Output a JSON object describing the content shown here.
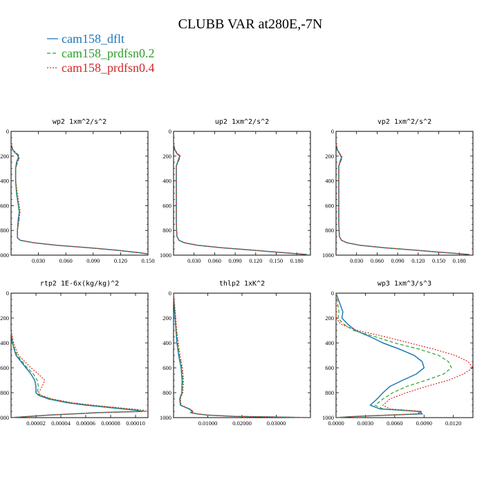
{
  "title": "CLUBB VAR at280E,-7N",
  "legend": [
    {
      "label": "cam158_dflt",
      "color": "#1f77b4",
      "dash": "solid"
    },
    {
      "label": "cam158_prdfsn0.2",
      "color": "#2ca02c",
      "dash": "dashed"
    },
    {
      "label": "cam158_prdfsn0.4",
      "color": "#d62728",
      "dash": "dotted"
    }
  ],
  "chart_data": [
    {
      "type": "line",
      "title": "wp2  1xm^2/s^2",
      "xlim": [
        0,
        0.15
      ],
      "ylim": [
        1000,
        0
      ],
      "yticks": [
        0,
        200,
        400,
        600,
        800,
        1000
      ],
      "xticks": [
        0.03,
        0.06,
        0.09,
        0.12,
        0.15
      ],
      "xtick_labels": [
        "0.030",
        "0.060",
        "0.090",
        "0.120",
        "0.150"
      ],
      "y": [
        100,
        150,
        170,
        190,
        210,
        250,
        300,
        400,
        500,
        600,
        650,
        700,
        800,
        860,
        880,
        900,
        920,
        940,
        960,
        980,
        990
      ],
      "series": [
        {
          "name": "cam158_dflt",
          "x": [
            0.0,
            0.002,
            0.004,
            0.007,
            0.008,
            0.006,
            0.005,
            0.005,
            0.006,
            0.008,
            0.009,
            0.008,
            0.007,
            0.007,
            0.01,
            0.025,
            0.05,
            0.085,
            0.115,
            0.14,
            0.15
          ]
        },
        {
          "name": "cam158_prdfsn0.2",
          "x": [
            0.0,
            0.002,
            0.005,
            0.008,
            0.009,
            0.007,
            0.005,
            0.005,
            0.006,
            0.008,
            0.009,
            0.009,
            0.007,
            0.007,
            0.01,
            0.025,
            0.05,
            0.085,
            0.115,
            0.14,
            0.15
          ]
        },
        {
          "name": "cam158_prdfsn0.4",
          "x": [
            0.0,
            0.002,
            0.005,
            0.008,
            0.009,
            0.007,
            0.005,
            0.005,
            0.007,
            0.009,
            0.01,
            0.009,
            0.007,
            0.007,
            0.01,
            0.025,
            0.05,
            0.085,
            0.115,
            0.14,
            0.15
          ]
        }
      ]
    },
    {
      "type": "line",
      "title": "up2  1xm^2/s^2",
      "xlim": [
        0,
        0.2
      ],
      "ylim": [
        1000,
        0
      ],
      "yticks": [
        0,
        200,
        400,
        600,
        800,
        1000
      ],
      "xticks": [
        0.03,
        0.06,
        0.09,
        0.12,
        0.15,
        0.18
      ],
      "xtick_labels": [
        "0.030",
        "0.060",
        "0.090",
        "0.120",
        "0.150",
        "0.180"
      ],
      "y": [
        100,
        150,
        180,
        200,
        230,
        280,
        350,
        450,
        550,
        650,
        750,
        850,
        880,
        900,
        920,
        940,
        960,
        980,
        995
      ],
      "series": [
        {
          "name": "cam158_dflt",
          "x": [
            0.0,
            0.002,
            0.005,
            0.009,
            0.007,
            0.004,
            0.004,
            0.004,
            0.004,
            0.004,
            0.004,
            0.005,
            0.008,
            0.016,
            0.035,
            0.07,
            0.115,
            0.16,
            0.195
          ]
        },
        {
          "name": "cam158_prdfsn0.2",
          "x": [
            0.0,
            0.002,
            0.006,
            0.01,
            0.008,
            0.004,
            0.004,
            0.004,
            0.004,
            0.004,
            0.004,
            0.005,
            0.008,
            0.016,
            0.035,
            0.07,
            0.115,
            0.16,
            0.195
          ]
        },
        {
          "name": "cam158_prdfsn0.4",
          "x": [
            0.0,
            0.002,
            0.006,
            0.01,
            0.008,
            0.004,
            0.004,
            0.004,
            0.004,
            0.004,
            0.004,
            0.005,
            0.008,
            0.016,
            0.035,
            0.07,
            0.115,
            0.16,
            0.195
          ]
        }
      ]
    },
    {
      "type": "line",
      "title": "vp2  1xm^2/s^2",
      "xlim": [
        0,
        0.2
      ],
      "ylim": [
        1000,
        0
      ],
      "yticks": [
        0,
        200,
        400,
        600,
        800,
        1000
      ],
      "xticks": [
        0.03,
        0.06,
        0.09,
        0.12,
        0.15,
        0.18
      ],
      "xtick_labels": [
        "0.030",
        "0.060",
        "0.090",
        "0.120",
        "0.150",
        "0.180"
      ],
      "y": [
        100,
        150,
        180,
        210,
        240,
        280,
        350,
        450,
        550,
        650,
        750,
        850,
        880,
        900,
        920,
        940,
        960,
        980,
        995
      ],
      "series": [
        {
          "name": "cam158_dflt",
          "x": [
            0.0,
            0.002,
            0.005,
            0.008,
            0.006,
            0.004,
            0.004,
            0.004,
            0.004,
            0.004,
            0.004,
            0.005,
            0.008,
            0.016,
            0.035,
            0.07,
            0.115,
            0.16,
            0.195
          ]
        },
        {
          "name": "cam158_prdfsn0.2",
          "x": [
            0.0,
            0.002,
            0.005,
            0.009,
            0.007,
            0.004,
            0.004,
            0.004,
            0.004,
            0.004,
            0.004,
            0.005,
            0.008,
            0.016,
            0.035,
            0.07,
            0.115,
            0.16,
            0.195
          ]
        },
        {
          "name": "cam158_prdfsn0.4",
          "x": [
            0.0,
            0.002,
            0.006,
            0.009,
            0.007,
            0.004,
            0.004,
            0.004,
            0.004,
            0.004,
            0.004,
            0.005,
            0.008,
            0.016,
            0.035,
            0.07,
            0.115,
            0.16,
            0.195
          ]
        }
      ]
    },
    {
      "type": "line",
      "title": "rtp2  1E-6x(kg/kg)^2",
      "xlim": [
        0,
        0.00011
      ],
      "ylim": [
        1000,
        0
      ],
      "yticks": [
        0,
        200,
        400,
        600,
        800,
        1000
      ],
      "xticks": [
        2e-05,
        4e-05,
        6e-05,
        8e-05,
        0.0001
      ],
      "xtick_labels": [
        "0.00002",
        "0.00004",
        "0.00006",
        "0.00008",
        "0.00010"
      ],
      "y": [
        300,
        400,
        500,
        550,
        600,
        650,
        700,
        750,
        800,
        820,
        850,
        880,
        900,
        920,
        940,
        950,
        960,
        980,
        1000
      ],
      "series": [
        {
          "name": "cam158_dflt",
          "x": [
            0.0,
            1e-06,
            4e-06,
            8e-06,
            1.2e-05,
            1.6e-05,
            1.9e-05,
            2e-05,
            2e-05,
            2.2e-05,
            3e-05,
            4.5e-05,
            6e-05,
            8e-05,
            0.0001,
            0.000105,
            7e-05,
            3e-05,
            0.0
          ]
        },
        {
          "name": "cam158_prdfsn0.2",
          "x": [
            0.0,
            1e-06,
            5e-06,
            9e-06,
            1.3e-05,
            1.8e-05,
            2.1e-05,
            2.2e-05,
            2.1e-05,
            2.3e-05,
            3.2e-05,
            4.7e-05,
            6.3e-05,
            8.3e-05,
            0.000103,
            0.000107,
            7e-05,
            3e-05,
            0.0
          ]
        },
        {
          "name": "cam158_prdfsn0.4",
          "x": [
            0.0,
            2e-06,
            6e-06,
            1.1e-05,
            1.6e-05,
            2.2e-05,
            2.7e-05,
            2.5e-05,
            2.2e-05,
            2.4e-05,
            3.3e-05,
            4.9e-05,
            6.6e-05,
            8.6e-05,
            0.000106,
            0.00011,
            7.2e-05,
            3e-05,
            0.0
          ]
        }
      ]
    },
    {
      "type": "line",
      "title": "thlp2  1xK^2",
      "xlim": [
        0,
        0.04
      ],
      "ylim": [
        1000,
        0
      ],
      "yticks": [
        0,
        200,
        400,
        600,
        800,
        1000
      ],
      "xticks": [
        0.01,
        0.02,
        0.03
      ],
      "xtick_labels": [
        "0.01000",
        "0.02000",
        "0.03000"
      ],
      "y": [
        0,
        150,
        300,
        400,
        500,
        600,
        700,
        800,
        850,
        900,
        930,
        950,
        960,
        970,
        980,
        990,
        995,
        1000
      ],
      "series": [
        {
          "name": "cam158_dflt",
          "x": [
            0.0,
            0.0003,
            0.0007,
            0.001,
            0.0015,
            0.0022,
            0.0025,
            0.0024,
            0.0018,
            0.002,
            0.0045,
            0.0055,
            0.005,
            0.007,
            0.01,
            0.018,
            0.03,
            0.04
          ]
        },
        {
          "name": "cam158_prdfsn0.2",
          "x": [
            0.0,
            0.0004,
            0.0008,
            0.0012,
            0.0017,
            0.0024,
            0.0027,
            0.0025,
            0.0019,
            0.0021,
            0.0046,
            0.0056,
            0.0051,
            0.007,
            0.01,
            0.018,
            0.03,
            0.04
          ]
        },
        {
          "name": "cam158_prdfsn0.4",
          "x": [
            0.0,
            0.0005,
            0.0009,
            0.0014,
            0.0019,
            0.0026,
            0.0029,
            0.0027,
            0.002,
            0.0022,
            0.0048,
            0.0058,
            0.0052,
            0.007,
            0.01,
            0.018,
            0.03,
            0.04
          ]
        }
      ]
    },
    {
      "type": "line",
      "title": "wp3  1xm^3/s^3",
      "xlim": [
        0,
        0.014
      ],
      "ylim": [
        1000,
        0
      ],
      "yticks": [
        0,
        200,
        400,
        600,
        800,
        1000
      ],
      "xticks": [
        0,
        0.003,
        0.006,
        0.009,
        0.012
      ],
      "xtick_labels": [
        "0.0000",
        "0.0030",
        "0.0060",
        "0.0090",
        "0.0120"
      ],
      "y": [
        0,
        150,
        200,
        250,
        300,
        350,
        400,
        450,
        500,
        550,
        600,
        650,
        700,
        750,
        800,
        850,
        900,
        930,
        950,
        970,
        990,
        1000
      ],
      "series": [
        {
          "name": "cam158_dflt",
          "x": [
            0.0,
            0.0007,
            0.0006,
            0.0012,
            0.002,
            0.0035,
            0.0048,
            0.0065,
            0.008,
            0.0088,
            0.009,
            0.0082,
            0.0068,
            0.0055,
            0.0048,
            0.0042,
            0.0035,
            0.0045,
            0.0085,
            0.0088,
            0.002,
            0.0
          ]
        },
        {
          "name": "cam158_prdfsn0.2",
          "x": [
            0.0,
            0.0003,
            0.0002,
            0.0008,
            0.0018,
            0.004,
            0.006,
            0.0085,
            0.0105,
            0.0115,
            0.0118,
            0.011,
            0.0092,
            0.0072,
            0.0058,
            0.0048,
            0.004,
            0.0048,
            0.0085,
            0.0085,
            0.002,
            0.0
          ]
        },
        {
          "name": "cam158_prdfsn0.4",
          "x": [
            0.0,
            0.0,
            0.0,
            0.0005,
            0.0022,
            0.005,
            0.0075,
            0.01,
            0.0122,
            0.0135,
            0.014,
            0.013,
            0.0115,
            0.0092,
            0.0072,
            0.0055,
            0.0048,
            0.0055,
            0.0088,
            0.0082,
            0.002,
            0.0
          ]
        }
      ]
    }
  ]
}
